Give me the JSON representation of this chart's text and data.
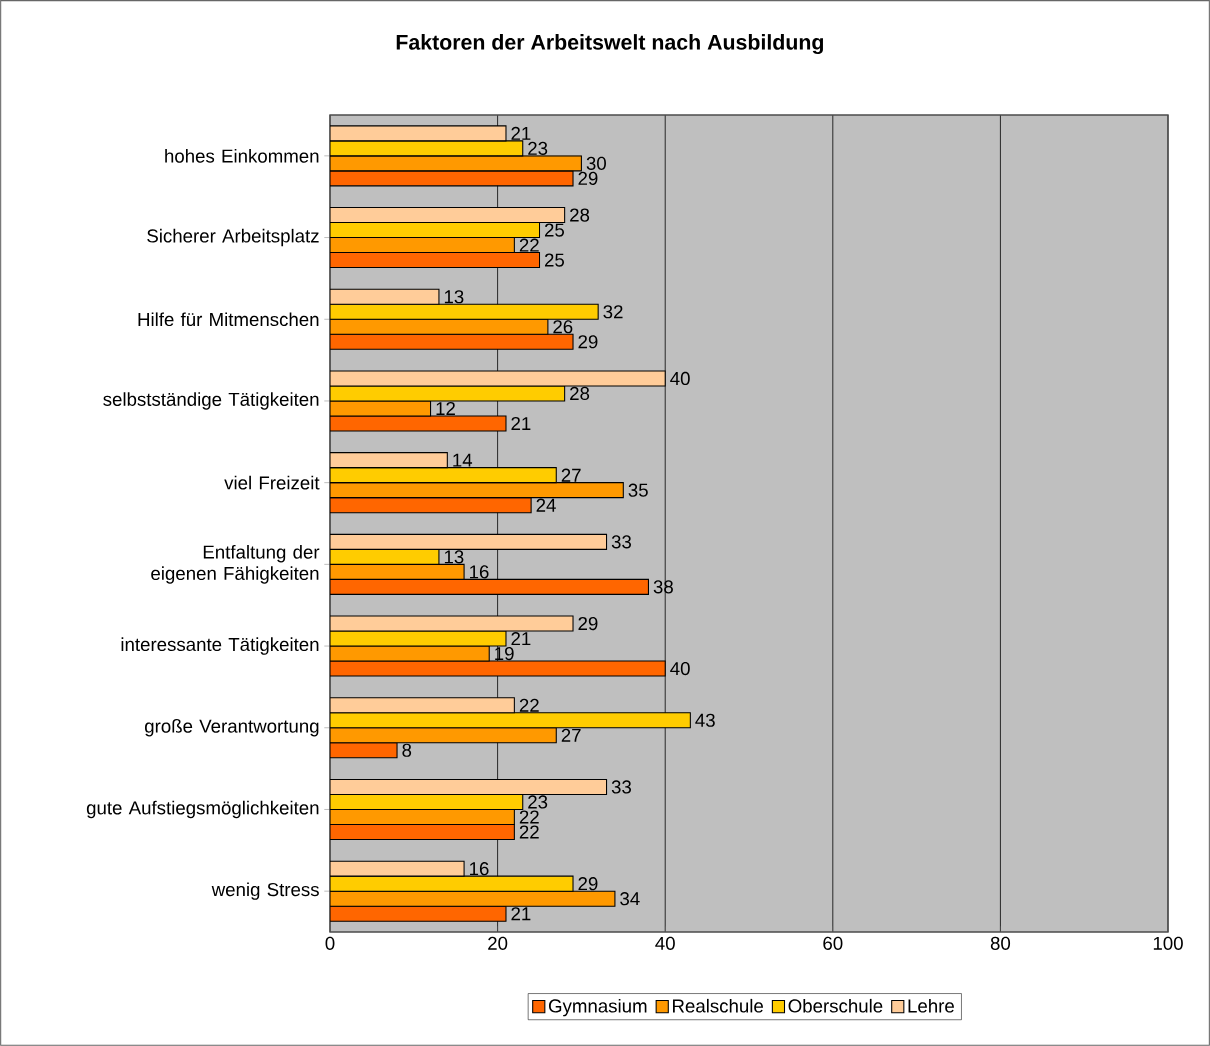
{
  "chart_data": {
    "type": "bar",
    "orientation": "horizontal",
    "title": "Faktoren der Arbeitswelt nach Ausbildung",
    "categories": [
      "hohes Einkommen",
      "Sicherer Arbeitsplatz",
      "Hilfe für Mitmenschen",
      "selbstständige Tätigkeiten",
      "viel Freizeit",
      "Entfaltung der eigenen Fähigkeiten",
      "interessante Tätigkeiten",
      "große Verantwortung",
      "gute Aufstiegsmöglichkeiten",
      "wenig Stress"
    ],
    "series": [
      {
        "name": "Gymnasium",
        "color": "#ff6600",
        "values": [
          29,
          25,
          29,
          21,
          24,
          38,
          40,
          8,
          22,
          21
        ]
      },
      {
        "name": "Realschule",
        "color": "#ff9900",
        "values": [
          30,
          22,
          26,
          12,
          35,
          16,
          19,
          27,
          22,
          34
        ]
      },
      {
        "name": "Oberschule",
        "color": "#ffcc00",
        "values": [
          23,
          25,
          32,
          28,
          27,
          13,
          21,
          43,
          23,
          29
        ]
      },
      {
        "name": "Lehre",
        "color": "#ffcc99",
        "values": [
          21,
          28,
          13,
          40,
          14,
          33,
          29,
          22,
          33,
          16
        ]
      }
    ],
    "xlim": [
      0,
      100
    ],
    "xticks": [
      0,
      20,
      40,
      60,
      80,
      100
    ],
    "grid": "x",
    "legend": "bottom",
    "data_labels": true
  }
}
